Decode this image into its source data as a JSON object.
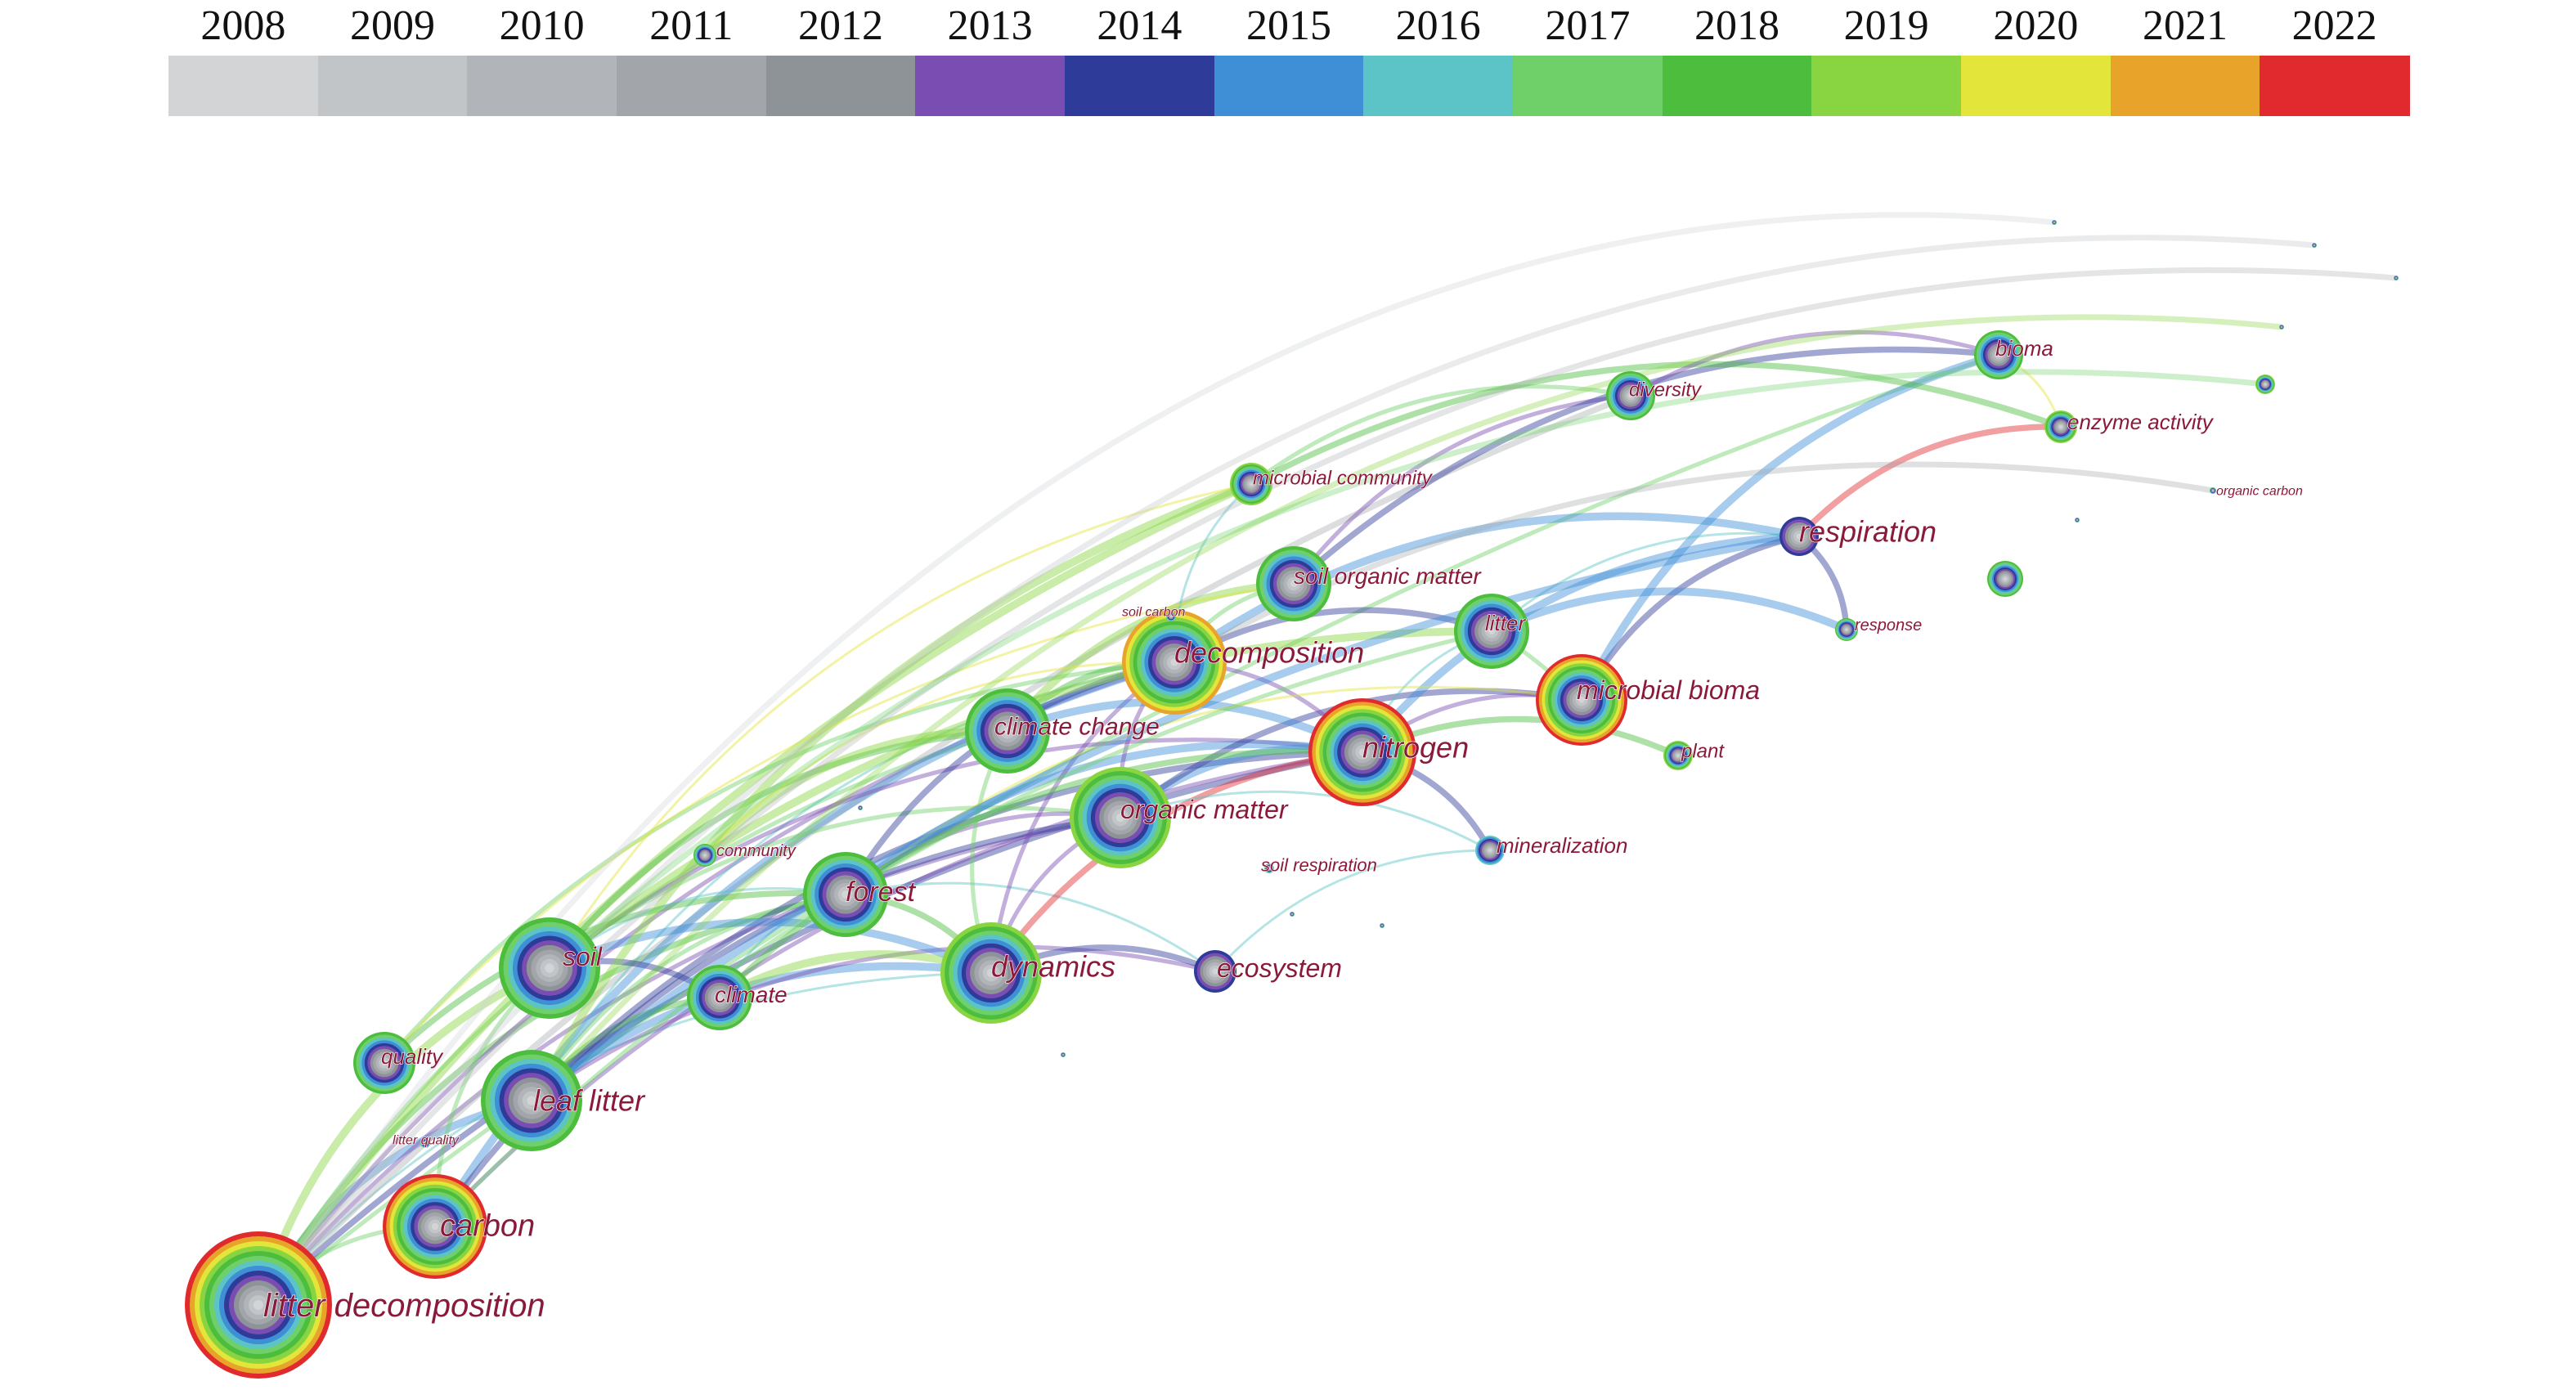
{
  "legend": {
    "years": [
      "2008",
      "2009",
      "2010",
      "2011",
      "2012",
      "2013",
      "2014",
      "2015",
      "2016",
      "2017",
      "2018",
      "2019",
      "2020",
      "2021",
      "2022"
    ],
    "colors": [
      "#d2d4d6",
      "#c2c5c8",
      "#b1b4b8",
      "#a2a5a9",
      "#8e9398",
      "#7a4db2",
      "#2f3b98",
      "#3e8fd6",
      "#5cc3c6",
      "#6fd06a",
      "#4cbd3d",
      "#88d441",
      "#e3e53b",
      "#e8a42a",
      "#e02a2e"
    ]
  },
  "keywords": {
    "litter_decomposition": "litter decomposition",
    "carbon": "carbon",
    "leaf_litter": "leaf litter",
    "quality": "quality",
    "litter_quality": "litter quality",
    "soil": "soil",
    "climate": "climate",
    "forest": "forest",
    "community": "community",
    "dynamics": "dynamics",
    "ecosystem": "ecosystem",
    "organic_matter": "organic matter",
    "climate_change": "climate change",
    "decomposition": "decomposition",
    "soil_carbon": "soil carbon",
    "nitrogen": "nitrogen",
    "soil_organic_matter": "soil organic matter",
    "microbial_community": "microbial community",
    "litter": "litter",
    "microbial_bioma": "microbial bioma",
    "plant": "plant",
    "mineralization": "mineralization",
    "soil_respiration": "soil respiration",
    "respiration": "respiration",
    "response": "response",
    "diversity": "diversity",
    "bioma": "bioma",
    "enzyme_activity": "enzyme activity",
    "organic_carbon": "organic carbon"
  }
}
